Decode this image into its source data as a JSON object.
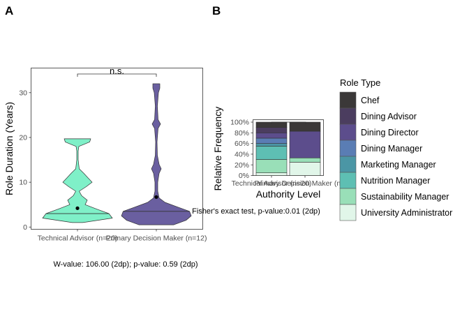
{
  "panel_a": {
    "letter": "A",
    "chart_data": {
      "type": "violin",
      "ylabel": "Role Duration (Years)",
      "ylim": [
        -0.5,
        35.5
      ],
      "yticks": [
        0,
        10,
        20,
        30
      ],
      "categories": [
        "Technical Advisor (n=20)",
        "Primary Decision Maker (n=12)"
      ],
      "colors": [
        "#7ff0c8",
        "#6a5fa0"
      ],
      "medians": [
        3,
        3.5
      ],
      "means": [
        4.2,
        6.7
      ],
      "density_profiles": [
        [
          [
            1,
            0.15
          ],
          [
            2,
            1.0
          ],
          [
            3,
            0.9
          ],
          [
            4,
            0.55
          ],
          [
            5,
            0.22
          ],
          [
            6,
            0.28
          ],
          [
            7,
            0.12
          ],
          [
            8,
            0.05
          ],
          [
            9,
            0.25
          ],
          [
            10,
            0.42
          ],
          [
            11,
            0.3
          ],
          [
            12,
            0.18
          ],
          [
            13,
            0.05
          ],
          [
            15,
            0.02
          ],
          [
            17,
            0.02
          ],
          [
            18,
            0.04
          ],
          [
            19,
            0.35
          ],
          [
            19.7,
            0.38
          ]
        ],
        [
          [
            0.5,
            0.5
          ],
          [
            1.5,
            0.85
          ],
          [
            2.5,
            1.0
          ],
          [
            3.5,
            0.95
          ],
          [
            4.5,
            0.6
          ],
          [
            5.5,
            0.25
          ],
          [
            6.5,
            0.08
          ],
          [
            8,
            0.04
          ],
          [
            10,
            0.04
          ],
          [
            12,
            0.08
          ],
          [
            13,
            0.14
          ],
          [
            14,
            0.08
          ],
          [
            16,
            0.03
          ],
          [
            19,
            0.02
          ],
          [
            22,
            0.05
          ],
          [
            23,
            0.12
          ],
          [
            24,
            0.05
          ],
          [
            27,
            0.03
          ],
          [
            30,
            0.06
          ],
          [
            31,
            0.1
          ],
          [
            32,
            0.1
          ]
        ]
      ],
      "significance": "n.s.",
      "caption": "W-value: 106.00 (2dp); p-value: 0.59 (2dp)"
    }
  },
  "panel_b": {
    "letter": "B",
    "chart_data": {
      "type": "bar",
      "stacked": true,
      "ylabel": "Relative Frequency",
      "xlabel": "Authority Level",
      "yticks": [
        "0%",
        "20%",
        "40%",
        "60%",
        "80%",
        "100%"
      ],
      "categories": [
        "Technical Advisor (n=20)",
        "Primary Decision Maker (n=12)"
      ],
      "legend_title": "Role Type",
      "legend_position": "right",
      "series": [
        {
          "name": "Chef",
          "color": "#3b3838",
          "values": [
            0.1,
            0.17
          ]
        },
        {
          "name": "Dining Advisor",
          "color": "#4b3d5f",
          "values": [
            0.1,
            0.0
          ]
        },
        {
          "name": "Dining Director",
          "color": "#5c4d8c",
          "values": [
            0.1,
            0.5
          ]
        },
        {
          "name": "Dining Manager",
          "color": "#5a7db4",
          "values": [
            0.1,
            0.0
          ]
        },
        {
          "name": "Marketing Manager",
          "color": "#4b96a5",
          "values": [
            0.05,
            0.0
          ]
        },
        {
          "name": "Nutrition Manager",
          "color": "#5ebfb3",
          "values": [
            0.25,
            0.0
          ]
        },
        {
          "name": "Sustainability Manager",
          "color": "#99dfb8",
          "values": [
            0.25,
            0.08
          ]
        },
        {
          "name": "University Administrator",
          "color": "#e1f6e9",
          "values": [
            0.05,
            0.25
          ]
        }
      ],
      "caption": "Fisher's exact test, p-value:0.01 (2dp)"
    }
  }
}
